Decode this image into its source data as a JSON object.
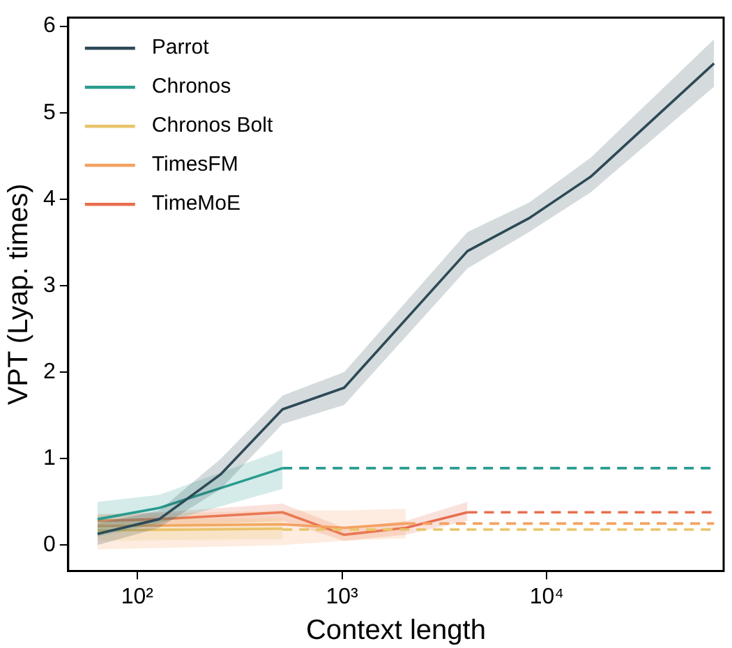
{
  "chart_data": {
    "type": "line",
    "xlabel": "Context length",
    "ylabel": "VPT (Lyap. times)",
    "log": "x",
    "xlim": [
      46,
      73000
    ],
    "xticks": [
      {
        "value": 100,
        "label": "10²"
      },
      {
        "value": 1000,
        "label": "10³"
      },
      {
        "value": 10000,
        "label": "10⁴"
      }
    ],
    "ylim": [
      -0.3,
      6.1
    ],
    "yticks": [
      0,
      1,
      2,
      3,
      4,
      5,
      6
    ],
    "grid": false,
    "legend": "top left",
    "marker": "none",
    "series": [
      {
        "name": "Parrot",
        "color": "#2e4a57",
        "x": [
          64,
          128,
          256,
          512,
          1024,
          4096,
          8192,
          16384,
          65536
        ],
        "values": [
          0.13,
          0.3,
          0.82,
          1.57,
          1.82,
          3.4,
          3.78,
          4.26,
          5.57
        ],
        "lower": [
          0.0,
          0.2,
          0.65,
          1.4,
          1.62,
          3.2,
          3.62,
          4.08,
          5.3
        ],
        "upper": [
          0.25,
          0.4,
          1.0,
          1.73,
          2.0,
          3.62,
          3.96,
          4.48,
          5.85
        ]
      },
      {
        "name": "Chronos",
        "color": "#2a9d8f",
        "x": [
          64,
          128,
          512
        ],
        "values": [
          0.3,
          0.43,
          0.89
        ],
        "lower": [
          0.1,
          0.25,
          0.65
        ],
        "upper": [
          0.5,
          0.58,
          1.1
        ]
      },
      {
        "color": "#2a9d8f",
        "line_style": "dashed",
        "x": [
          512,
          65536
        ],
        "values": [
          0.89,
          0.89
        ]
      },
      {
        "name": "Chronos Bolt",
        "color": "#e9c46a",
        "x": [
          64,
          512
        ],
        "values": [
          0.17,
          0.19
        ],
        "lower": [
          0.05,
          0.07
        ],
        "upper": [
          0.3,
          0.31
        ]
      },
      {
        "color": "#e9c46a",
        "line_style": "dashed",
        "x": [
          512,
          65536
        ],
        "values": [
          0.18,
          0.18
        ]
      },
      {
        "name": "TimesFM",
        "color": "#f4a261",
        "x": [
          64,
          512,
          1024,
          2048
        ],
        "values": [
          0.22,
          0.24,
          0.2,
          0.25
        ],
        "lower": [
          -0.05,
          0.0,
          0.05,
          0.08
        ],
        "upper": [
          0.35,
          0.4,
          0.4,
          0.42
        ]
      },
      {
        "color": "#f4a261",
        "line_style": "dashed",
        "x": [
          2048,
          65536
        ],
        "values": [
          0.25,
          0.25
        ]
      },
      {
        "name": "TimeMoE",
        "color": "#e76f51",
        "x": [
          64,
          128,
          512,
          1024,
          2048,
          4096
        ],
        "values": [
          0.28,
          0.3,
          0.38,
          0.12,
          0.2,
          0.38
        ],
        "lower": [
          0.2,
          0.22,
          0.28,
          0.05,
          0.12,
          0.28
        ],
        "upper": [
          0.36,
          0.38,
          0.48,
          0.2,
          0.28,
          0.5
        ]
      },
      {
        "color": "#e76f51",
        "line_style": "dashed",
        "x": [
          4096,
          65536
        ],
        "values": [
          0.38,
          0.38
        ]
      }
    ]
  }
}
